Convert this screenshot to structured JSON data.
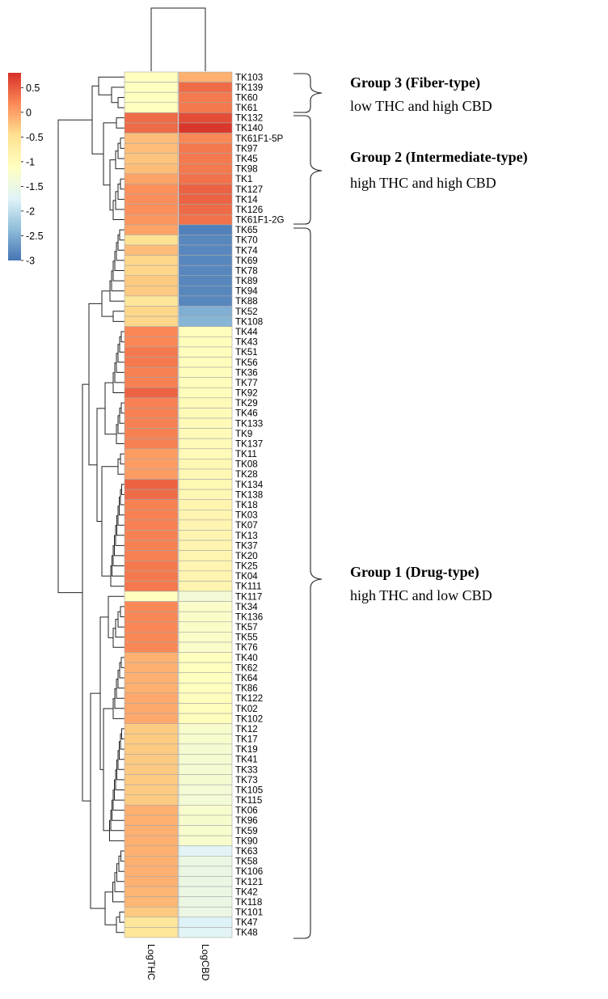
{
  "chart_data": {
    "type": "heatmap",
    "title": "",
    "columns": [
      "LogTHC",
      "LogCBD"
    ],
    "legend": {
      "ticks": [
        0.5,
        0,
        -0.5,
        -1,
        -1.5,
        -2,
        -2.5,
        -3
      ],
      "tick_labels": [
        "0.5",
        "0",
        "-0.5",
        "-1",
        "-1.5",
        "-2",
        "-2.5",
        "-3"
      ],
      "range": [
        -3,
        0.8
      ],
      "colors": [
        "#4575b4",
        "#91bfdb",
        "#e0f3f8",
        "#ffffbf",
        "#fee090",
        "#fc8d59",
        "#d73027"
      ]
    },
    "rows": [
      {
        "name": "TK103",
        "LogTHC": -1.1,
        "LogCBD": -0.1
      },
      {
        "name": "TK139",
        "LogTHC": -1.1,
        "LogCBD": 0.4
      },
      {
        "name": "TK60",
        "LogTHC": -1.1,
        "LogCBD": 0.3
      },
      {
        "name": "TK61",
        "LogTHC": -1.1,
        "LogCBD": 0.3
      },
      {
        "name": "TK132",
        "LogTHC": 0.4,
        "LogCBD": 0.6
      },
      {
        "name": "TK140",
        "LogTHC": 0.4,
        "LogCBD": 0.75
      },
      {
        "name": "TK61F1-5P",
        "LogTHC": -0.2,
        "LogCBD": 0.2
      },
      {
        "name": "TK97",
        "LogTHC": -0.2,
        "LogCBD": 0.3
      },
      {
        "name": "TK45",
        "LogTHC": -0.25,
        "LogCBD": 0.3
      },
      {
        "name": "TK98",
        "LogTHC": -0.2,
        "LogCBD": 0.3
      },
      {
        "name": "TK1",
        "LogTHC": 0.0,
        "LogCBD": 0.35
      },
      {
        "name": "TK127",
        "LogTHC": 0.15,
        "LogCBD": 0.45
      },
      {
        "name": "TK14",
        "LogTHC": 0.15,
        "LogCBD": 0.45
      },
      {
        "name": "TK126",
        "LogTHC": 0.15,
        "LogCBD": 0.4
      },
      {
        "name": "TK61F1-2G",
        "LogTHC": 0.1,
        "LogCBD": 0.35
      },
      {
        "name": "TK65",
        "LogTHC": 0.0,
        "LogCBD": -2.9
      },
      {
        "name": "TK70",
        "LogTHC": -0.5,
        "LogCBD": -2.85
      },
      {
        "name": "TK74",
        "LogTHC": -0.2,
        "LogCBD": -2.85
      },
      {
        "name": "TK69",
        "LogTHC": -0.4,
        "LogCBD": -2.85
      },
      {
        "name": "TK78",
        "LogTHC": -0.4,
        "LogCBD": -2.85
      },
      {
        "name": "TK89",
        "LogTHC": -0.3,
        "LogCBD": -2.85
      },
      {
        "name": "TK94",
        "LogTHC": -0.3,
        "LogCBD": -2.85
      },
      {
        "name": "TK88",
        "LogTHC": -0.6,
        "LogCBD": -2.85
      },
      {
        "name": "TK52",
        "LogTHC": -0.4,
        "LogCBD": -2.5
      },
      {
        "name": "TK108",
        "LogTHC": -0.4,
        "LogCBD": -2.45
      },
      {
        "name": "TK44",
        "LogTHC": 0.2,
        "LogCBD": -1.05
      },
      {
        "name": "TK43",
        "LogTHC": 0.2,
        "LogCBD": -1.05
      },
      {
        "name": "TK51",
        "LogTHC": 0.3,
        "LogCBD": -1.05
      },
      {
        "name": "TK56",
        "LogTHC": 0.3,
        "LogCBD": -1.05
      },
      {
        "name": "TK36",
        "LogTHC": 0.25,
        "LogCBD": -1.05
      },
      {
        "name": "TK77",
        "LogTHC": 0.25,
        "LogCBD": -1.05
      },
      {
        "name": "TK92",
        "LogTHC": 0.45,
        "LogCBD": -1.05
      },
      {
        "name": "TK29",
        "LogTHC": 0.25,
        "LogCBD": -1.0
      },
      {
        "name": "TK46",
        "LogTHC": 0.25,
        "LogCBD": -1.0
      },
      {
        "name": "TK133",
        "LogTHC": 0.25,
        "LogCBD": -1.0
      },
      {
        "name": "TK9",
        "LogTHC": 0.25,
        "LogCBD": -1.0
      },
      {
        "name": "TK137",
        "LogTHC": 0.25,
        "LogCBD": -1.0
      },
      {
        "name": "TK11",
        "LogTHC": 0.05,
        "LogCBD": -1.0
      },
      {
        "name": "TK08",
        "LogTHC": 0.05,
        "LogCBD": -0.95
      },
      {
        "name": "TK28",
        "LogTHC": 0.05,
        "LogCBD": -0.95
      },
      {
        "name": "TK134",
        "LogTHC": 0.45,
        "LogCBD": -0.95
      },
      {
        "name": "TK138",
        "LogTHC": 0.4,
        "LogCBD": -0.95
      },
      {
        "name": "TK18",
        "LogTHC": 0.25,
        "LogCBD": -0.9
      },
      {
        "name": "TK03",
        "LogTHC": 0.25,
        "LogCBD": -0.9
      },
      {
        "name": "TK07",
        "LogTHC": 0.25,
        "LogCBD": -0.9
      },
      {
        "name": "TK13",
        "LogTHC": 0.25,
        "LogCBD": -0.9
      },
      {
        "name": "TK37",
        "LogTHC": 0.25,
        "LogCBD": -0.9
      },
      {
        "name": "TK20",
        "LogTHC": 0.25,
        "LogCBD": -0.9
      },
      {
        "name": "TK25",
        "LogTHC": 0.3,
        "LogCBD": -0.9
      },
      {
        "name": "TK04",
        "LogTHC": 0.3,
        "LogCBD": -0.9
      },
      {
        "name": "TK111",
        "LogTHC": 0.3,
        "LogCBD": -0.9
      },
      {
        "name": "TK117",
        "LogTHC": -1.1,
        "LogCBD": -1.35
      },
      {
        "name": "TK34",
        "LogTHC": 0.2,
        "LogCBD": -1.2
      },
      {
        "name": "TK136",
        "LogTHC": 0.2,
        "LogCBD": -1.2
      },
      {
        "name": "TK57",
        "LogTHC": 0.2,
        "LogCBD": -1.2
      },
      {
        "name": "TK55",
        "LogTHC": 0.2,
        "LogCBD": -1.2
      },
      {
        "name": "TK76",
        "LogTHC": 0.2,
        "LogCBD": -1.2
      },
      {
        "name": "TK40",
        "LogTHC": -0.1,
        "LogCBD": -1.1
      },
      {
        "name": "TK62",
        "LogTHC": -0.1,
        "LogCBD": -1.1
      },
      {
        "name": "TK64",
        "LogTHC": -0.1,
        "LogCBD": -1.1
      },
      {
        "name": "TK86",
        "LogTHC": -0.1,
        "LogCBD": -1.1
      },
      {
        "name": "TK122",
        "LogTHC": -0.05,
        "LogCBD": -1.05
      },
      {
        "name": "TK02",
        "LogTHC": -0.05,
        "LogCBD": -1.05
      },
      {
        "name": "TK102",
        "LogTHC": -0.05,
        "LogCBD": -1.05
      },
      {
        "name": "TK12",
        "LogTHC": -0.3,
        "LogCBD": -1.25
      },
      {
        "name": "TK17",
        "LogTHC": -0.3,
        "LogCBD": -1.25
      },
      {
        "name": "TK19",
        "LogTHC": -0.3,
        "LogCBD": -1.3
      },
      {
        "name": "TK41",
        "LogTHC": -0.3,
        "LogCBD": -1.3
      },
      {
        "name": "TK33",
        "LogTHC": -0.3,
        "LogCBD": -1.3
      },
      {
        "name": "TK73",
        "LogTHC": -0.3,
        "LogCBD": -1.3
      },
      {
        "name": "TK105",
        "LogTHC": -0.3,
        "LogCBD": -1.35
      },
      {
        "name": "TK115",
        "LogTHC": -0.3,
        "LogCBD": -1.35
      },
      {
        "name": "TK06",
        "LogTHC": -0.1,
        "LogCBD": -1.25
      },
      {
        "name": "TK96",
        "LogTHC": -0.1,
        "LogCBD": -1.25
      },
      {
        "name": "TK59",
        "LogTHC": -0.1,
        "LogCBD": -1.25
      },
      {
        "name": "TK90",
        "LogTHC": -0.1,
        "LogCBD": -1.25
      },
      {
        "name": "TK63",
        "LogTHC": -0.1,
        "LogCBD": -1.7
      },
      {
        "name": "TK58",
        "LogTHC": -0.1,
        "LogCBD": -1.5
      },
      {
        "name": "TK106",
        "LogTHC": -0.1,
        "LogCBD": -1.5
      },
      {
        "name": "TK121",
        "LogTHC": -0.1,
        "LogCBD": -1.5
      },
      {
        "name": "TK42",
        "LogTHC": -0.15,
        "LogCBD": -1.5
      },
      {
        "name": "TK118",
        "LogTHC": -0.15,
        "LogCBD": -1.5
      },
      {
        "name": "TK101",
        "LogTHC": -0.3,
        "LogCBD": -1.5
      },
      {
        "name": "TK47",
        "LogTHC": -0.6,
        "LogCBD": -1.75
      },
      {
        "name": "TK48",
        "LogTHC": -0.6,
        "LogCBD": -1.7
      }
    ]
  },
  "groups": [
    {
      "title": "Group 3 (Fiber-type)",
      "desc": "low THC  and high CBD"
    },
    {
      "title": "Group 2 (Intermediate-type)",
      "desc": "high THC  and high CBD"
    },
    {
      "title": "Group 1 (Drug-type)",
      "desc": "high THC  and low CBD"
    }
  ]
}
